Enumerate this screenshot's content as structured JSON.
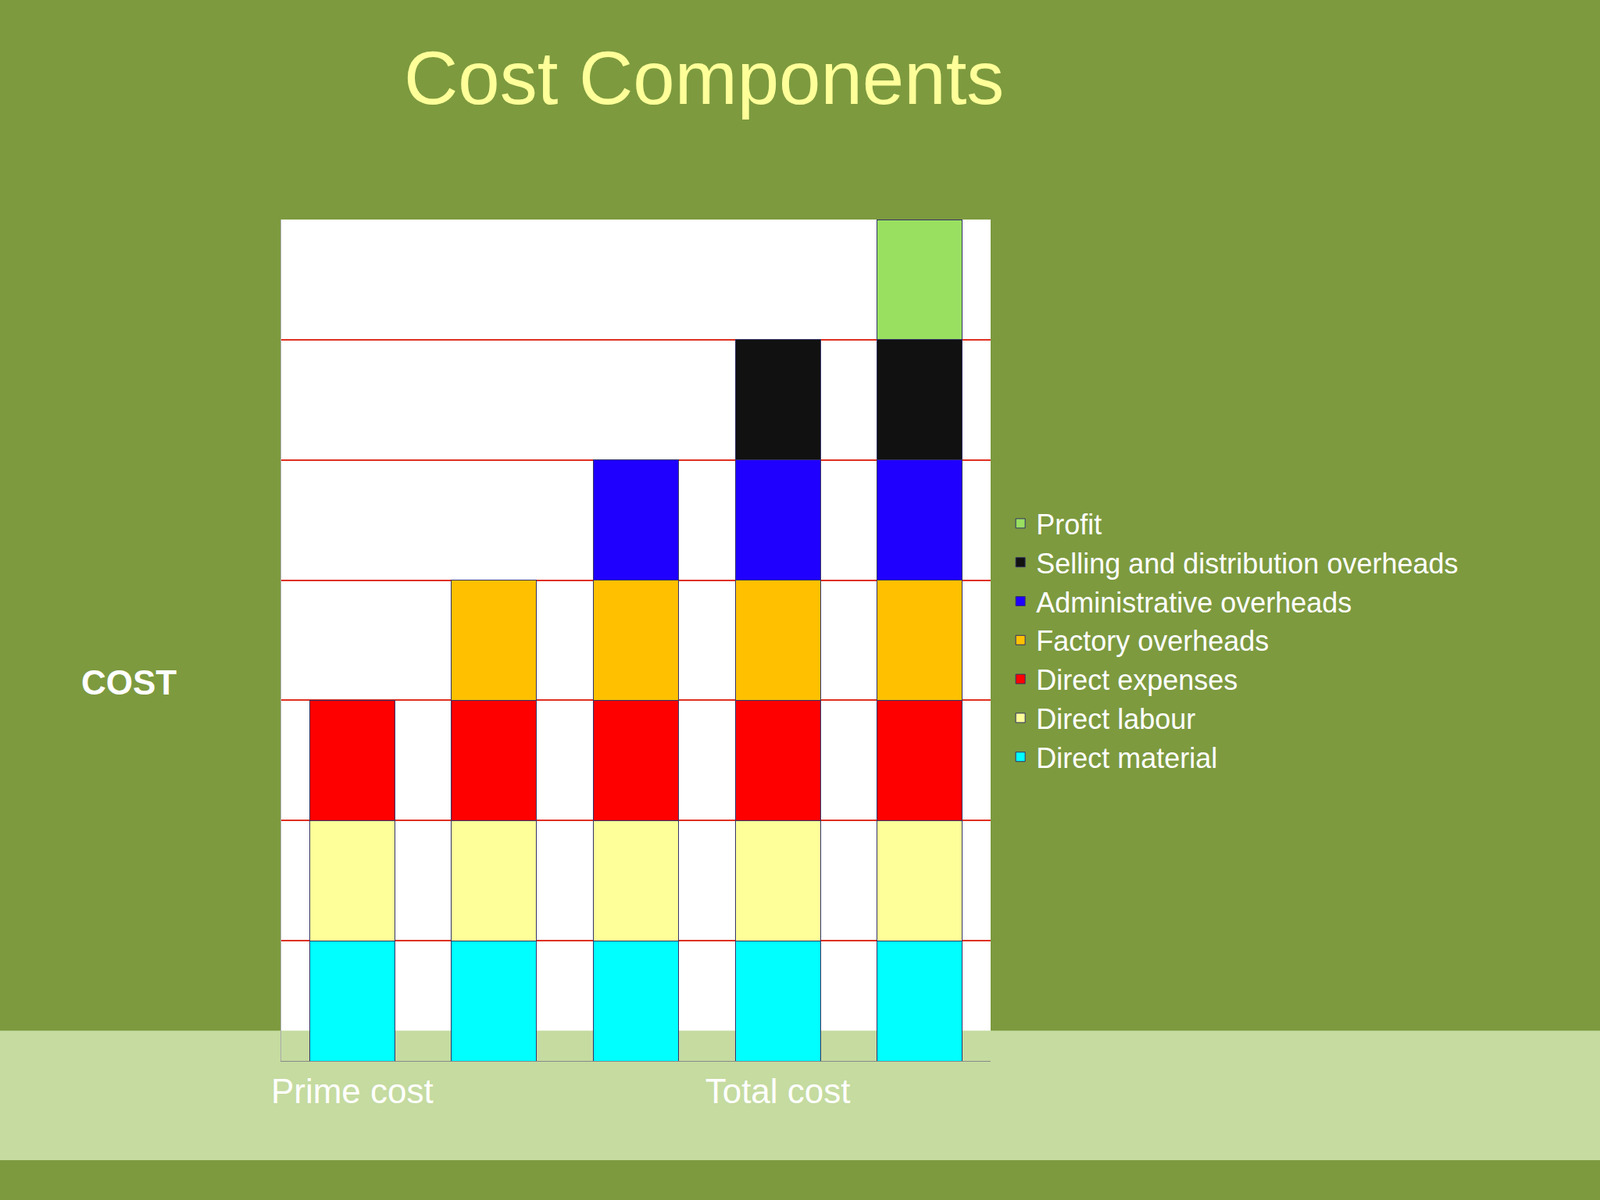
{
  "chart_data": {
    "type": "bar",
    "title": "Cost Components",
    "y_label": "COST",
    "categories": [
      "Prime cost",
      null,
      null,
      "Total cost",
      null
    ],
    "stacked": true,
    "grid": true,
    "legend": "right",
    "tick_labels": "x",
    "ylim": [
      0,
      7
    ],
    "yticks": [
      0,
      1,
      2,
      3,
      4,
      5,
      6,
      7
    ],
    "series": [
      {
        "name": "Direct material",
        "color": "#00ffff",
        "values": [
          1,
          1,
          1,
          1,
          1
        ]
      },
      {
        "name": "Direct labour",
        "color": "#ffff99",
        "values": [
          1,
          1,
          1,
          1,
          1
        ]
      },
      {
        "name": "Direct expenses",
        "color": "#ff0000",
        "values": [
          1,
          1,
          1,
          1,
          1
        ]
      },
      {
        "name": "Factory overheads",
        "color": "#ffc000",
        "values": [
          null,
          1,
          1,
          1,
          1
        ]
      },
      {
        "name": "Administrative overheads",
        "color": "#1f00ff",
        "values": [
          null,
          null,
          1,
          1,
          1
        ]
      },
      {
        "name": "Selling and distribution overheads",
        "color": "#111111",
        "values": [
          null,
          null,
          null,
          1,
          1
        ]
      },
      {
        "name": "Profit",
        "color": "#99e060",
        "values": [
          null,
          null,
          null,
          null,
          1
        ]
      }
    ]
  }
}
